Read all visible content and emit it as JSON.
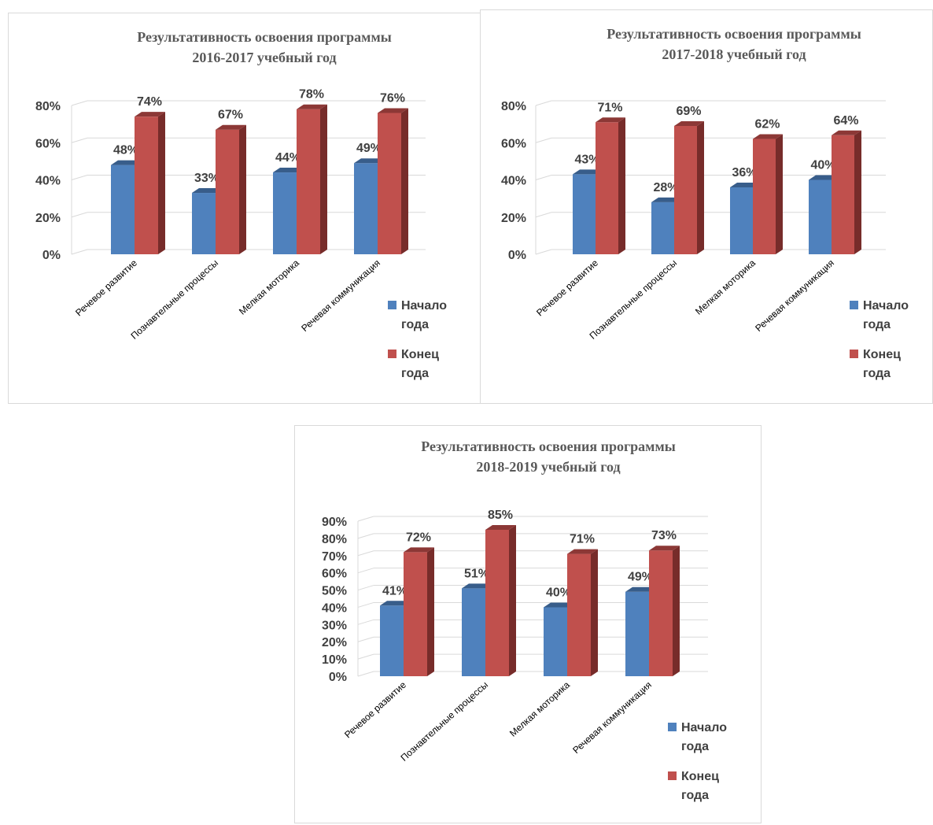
{
  "colors": {
    "begin_front": "#4f81bd",
    "begin_side": "#2c4d75",
    "begin_top": "#385d8a",
    "end_front": "#c0504d",
    "end_side": "#772c2a",
    "end_top": "#8c3836",
    "grid": "#d9d9d9"
  },
  "chart_data": [
    {
      "type": "bar",
      "title": [
        "Результативность освоения программы",
        "2016-2017 учебный год"
      ],
      "categories": [
        "Речевое развитие",
        "Познавтельные процессы",
        "Мелкая моторика",
        "Речевая коммуникация"
      ],
      "series": [
        {
          "name": [
            "Начало",
            "года"
          ],
          "values": [
            48,
            33,
            44,
            49
          ],
          "labels": [
            "48%",
            "33%",
            "44%",
            "49%"
          ]
        },
        {
          "name": [
            "Конец",
            "года"
          ],
          "values": [
            74,
            67,
            78,
            76
          ],
          "labels": [
            "74%",
            "67%",
            "78%",
            "76%"
          ]
        }
      ],
      "yticks": [
        "0%",
        "20%",
        "40%",
        "60%",
        "80%"
      ],
      "ylim": [
        0,
        80
      ],
      "legend": "right",
      "grid": true
    },
    {
      "type": "bar",
      "title": [
        "Результативность освоения программы",
        "2017-2018 учебный год"
      ],
      "categories": [
        "Речевое развитие",
        "Познавтельные процессы",
        "Мелкая моторика",
        "Речевая коммуникация"
      ],
      "series": [
        {
          "name": [
            "Начало",
            "года"
          ],
          "values": [
            43,
            28,
            36,
            40
          ],
          "labels": [
            "43%",
            "28%",
            "36%",
            "40%"
          ]
        },
        {
          "name": [
            "Конец",
            "года"
          ],
          "values": [
            71,
            69,
            62,
            64
          ],
          "labels": [
            "71%",
            "69%",
            "62%",
            "64%"
          ]
        }
      ],
      "yticks": [
        "0%",
        "20%",
        "40%",
        "60%",
        "80%"
      ],
      "ylim": [
        0,
        80
      ],
      "legend": "right",
      "grid": true
    },
    {
      "type": "bar",
      "title": [
        "Результативность освоения программы",
        "2018-2019 учебный год"
      ],
      "categories": [
        "Речевое развитие",
        "Познавтельные процессы",
        "Мелкая моторика",
        "Речевая коммуникация"
      ],
      "series": [
        {
          "name": [
            "Начало",
            "года"
          ],
          "values": [
            41,
            51,
            40,
            49
          ],
          "labels": [
            "41%",
            "51%",
            "40%",
            "49%"
          ]
        },
        {
          "name": [
            "Конец",
            "года"
          ],
          "values": [
            72,
            85,
            71,
            73
          ],
          "labels": [
            "72%",
            "85%",
            "71%",
            "73%"
          ]
        }
      ],
      "yticks": [
        "0%",
        "10%",
        "20%",
        "30%",
        "40%",
        "50%",
        "60%",
        "70%",
        "80%",
        "90%"
      ],
      "ylim": [
        0,
        90
      ],
      "legend": "right",
      "grid": true
    }
  ]
}
